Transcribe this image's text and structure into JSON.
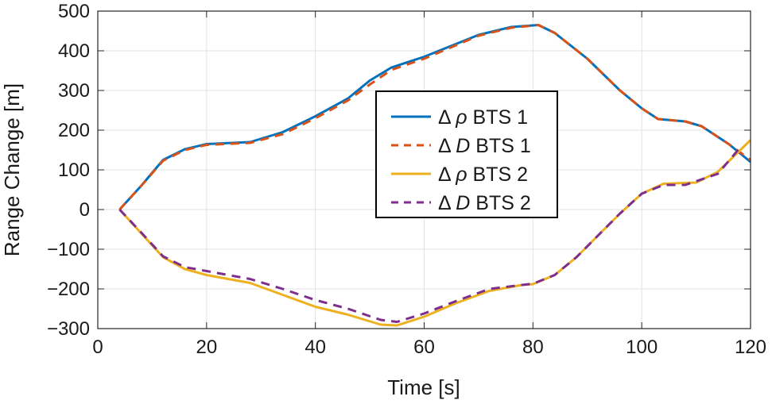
{
  "chart_data": {
    "type": "line",
    "title": "",
    "xlabel": "Time [s]",
    "ylabel": "Range Change [m]",
    "xlim": [
      0,
      120
    ],
    "ylim": [
      -300,
      500
    ],
    "xticks": [
      0,
      20,
      40,
      60,
      80,
      100,
      120
    ],
    "yticks": [
      -300,
      -200,
      -100,
      0,
      100,
      200,
      300,
      400,
      500
    ],
    "ytick_labels": [
      "−300",
      "−200",
      "−100",
      "0",
      "100",
      "200",
      "300",
      "400",
      "500"
    ],
    "grid": true,
    "legend_position": "center",
    "series": [
      {
        "name": "Δ ρ BTS 1",
        "prefix": "Δ ",
        "symbol": "ρ",
        "suffix": " BTS 1",
        "color": "#0072BD",
        "dash": "solid",
        "x": [
          4,
          8,
          12,
          16,
          20,
          28,
          34,
          40,
          46,
          50,
          54,
          60,
          70,
          76,
          81,
          84,
          90,
          96,
          100,
          103,
          108,
          111,
          116,
          120
        ],
        "y": [
          0,
          60,
          125,
          152,
          165,
          170,
          195,
          235,
          280,
          325,
          358,
          385,
          440,
          460,
          465,
          445,
          380,
          300,
          255,
          228,
          222,
          210,
          165,
          120
        ]
      },
      {
        "name": "Δ D BTS 1",
        "prefix": "Δ ",
        "symbol": "D",
        "suffix": " BTS 1",
        "color": "#D95319",
        "dash": "dashed",
        "x": [
          4,
          8,
          12,
          16,
          20,
          28,
          34,
          40,
          46,
          50,
          54,
          60,
          70,
          76,
          81,
          84,
          90,
          96,
          100,
          103,
          108,
          111,
          116,
          120
        ],
        "y": [
          0,
          60,
          123,
          150,
          163,
          168,
          190,
          230,
          275,
          315,
          352,
          380,
          438,
          458,
          465,
          445,
          380,
          300,
          255,
          228,
          222,
          210,
          165,
          125
        ]
      },
      {
        "name": "Δ ρ BTS 2",
        "prefix": "Δ ",
        "symbol": "ρ",
        "suffix": " BTS 2",
        "color": "#EDB120",
        "dash": "solid",
        "x": [
          4,
          8,
          12,
          16,
          20,
          28,
          34,
          40,
          46,
          52,
          55,
          60,
          66,
          72,
          78,
          80,
          84,
          88,
          92,
          96,
          100,
          104,
          110,
          114,
          120
        ],
        "y": [
          0,
          -60,
          -120,
          -150,
          -165,
          -185,
          -215,
          -245,
          -265,
          -290,
          -292,
          -270,
          -235,
          -205,
          -190,
          -188,
          -165,
          -120,
          -65,
          -10,
          40,
          65,
          68,
          95,
          175
        ]
      },
      {
        "name": "Δ D BTS 2",
        "prefix": "Δ ",
        "symbol": "D",
        "suffix": " BTS 2",
        "color": "#7E2F8E",
        "dash": "dashed",
        "x": [
          4,
          8,
          12,
          16,
          20,
          28,
          34,
          40,
          46,
          52,
          55,
          60,
          66,
          72,
          78,
          80,
          84,
          88,
          92,
          96,
          100,
          104,
          108,
          114,
          118
        ],
        "y": [
          0,
          -58,
          -118,
          -145,
          -155,
          -175,
          -200,
          -228,
          -250,
          -278,
          -283,
          -262,
          -230,
          -200,
          -190,
          -187,
          -165,
          -120,
          -65,
          -10,
          40,
          62,
          62,
          90,
          155
        ]
      }
    ]
  }
}
